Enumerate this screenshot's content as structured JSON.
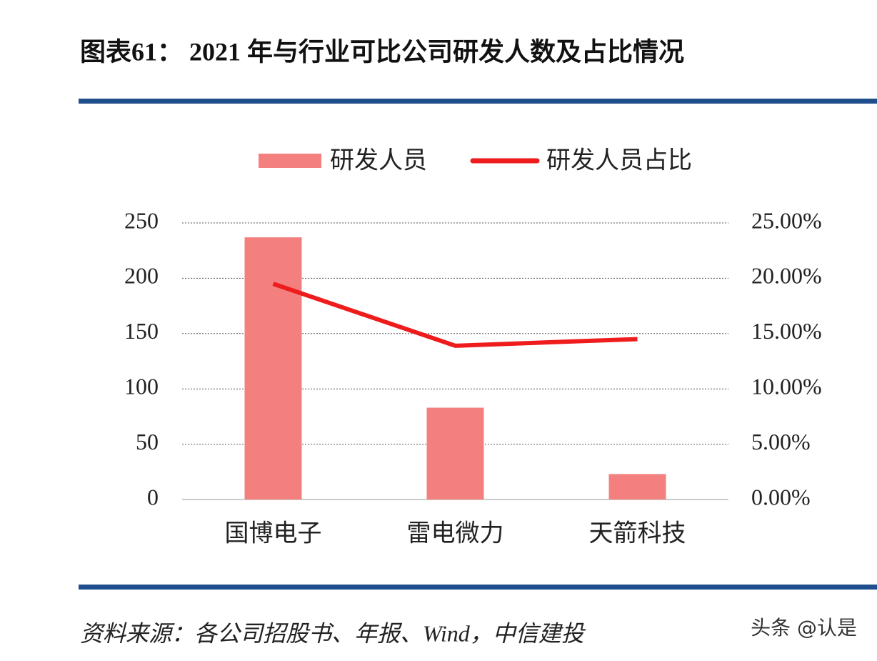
{
  "chart_data": {
    "type": "bar-line",
    "title": "图表61：  2021 年与行业可比公司研发人数及占比情况",
    "categories": [
      "国博电子",
      "雷电微力",
      "天箭科技"
    ],
    "series": [
      {
        "name": "研发人员",
        "type": "bar",
        "color": "#f47f7f",
        "values": [
          237,
          83,
          23
        ]
      },
      {
        "name": "研发人员占比",
        "type": "line",
        "axis": "y2",
        "color": "#ee1c1c",
        "values": [
          19.5,
          13.9,
          14.5
        ]
      }
    ],
    "ylim": [
      0,
      250
    ],
    "yticks": [
      0,
      50,
      100,
      150,
      200,
      250
    ],
    "y2lim": [
      0,
      25
    ],
    "y2ticks": [
      {
        "value": 0,
        "label": "0.00%"
      },
      {
        "value": 5,
        "label": "5.00%"
      },
      {
        "value": 10,
        "label": "10.00%"
      },
      {
        "value": 15,
        "label": "15.00%"
      },
      {
        "value": 20,
        "label": "20.00%"
      },
      {
        "value": 25,
        "label": "25.00%"
      }
    ],
    "grid": true,
    "legend": "top"
  },
  "source": "资料来源：各公司招股书、年报、Wind，中信建投",
  "watermark": "头条 @认是"
}
